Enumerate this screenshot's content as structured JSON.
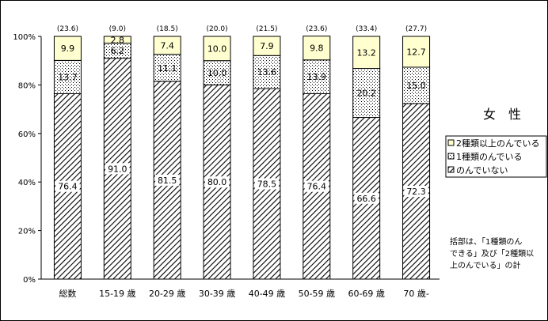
{
  "chart_data": {
    "type": "bar",
    "stacked": true,
    "percent_stacked": true,
    "categories": [
      "総数",
      "15-19 歳",
      "20-29 歳",
      "30-39 歳",
      "40-49 歳",
      "50-59 歳",
      "60-69 歳",
      "70 歳-"
    ],
    "group_totals": [
      "(23.6)",
      "(9.0)",
      "(18.5)",
      "(20.0)",
      "(21.5)",
      "(23.6)",
      "(33.4)",
      "(27.7)"
    ],
    "series": [
      {
        "name": "のんでいない",
        "values": [
          76.4,
          91.0,
          81.5,
          80.0,
          78.5,
          76.4,
          66.6,
          72.3
        ],
        "labels": [
          "76.4",
          "91.0",
          "81.5",
          "80.0",
          "78.5",
          "76.4",
          "66.6",
          "72.3"
        ]
      },
      {
        "name": "1種類のんでいる",
        "values": [
          13.7,
          6.2,
          11.1,
          10.0,
          13.6,
          13.9,
          20.2,
          15.0
        ],
        "labels": [
          "13.7",
          "6.2",
          "11.1",
          "10.0",
          "13.6",
          "13.9",
          "20.2",
          "15.0"
        ]
      },
      {
        "name": "2種類以上のんでいる",
        "values": [
          9.9,
          2.8,
          7.4,
          10.0,
          7.9,
          9.8,
          13.2,
          12.7
        ],
        "labels": [
          "9.9",
          "2.8",
          "7.4",
          "10.0",
          "7.9",
          "9.8",
          "13.2",
          "12.7"
        ]
      }
    ],
    "y_ticks": [
      "0%",
      "20%",
      "40%",
      "60%",
      "80%",
      "100%"
    ],
    "ylim": [
      0,
      100
    ],
    "grid": false,
    "legend_position": "right",
    "legend_order": [
      "2種類以上のんでいる",
      "1種類のんでいる",
      "のんでいない"
    ],
    "title": "女　性",
    "note": [
      "括部は、「1種類のん",
      "できる」及び「2種類以",
      "上のんでいる」の計"
    ],
    "colors": {
      "background": "#ffffff",
      "stroke": "#000000",
      "top_fill": "#ffffd0"
    }
  }
}
